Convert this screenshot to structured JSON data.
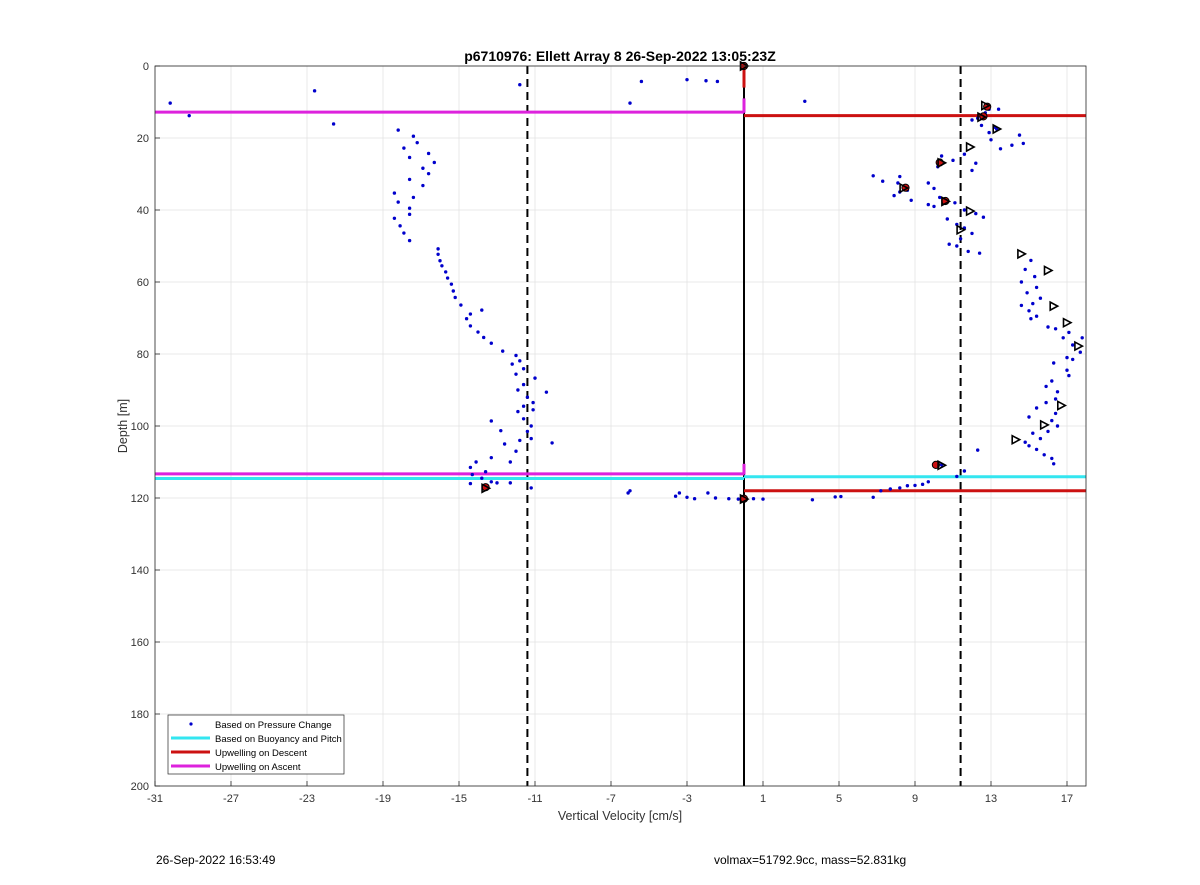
{
  "footer": {
    "timestamp": "26-Sep-2022 16:53:49",
    "info": "volmax=51792.9cc, mass=52.831kg"
  },
  "chart_data": {
    "type": "scatter",
    "title": "p6710976: Ellett Array 8 26-Sep-2022 13:05:23Z",
    "xlabel": "Vertical Velocity [cm/s]",
    "ylabel": "Depth [m]",
    "xlim": [
      -31,
      18
    ],
    "ylim": [
      0,
      200
    ],
    "y_reversed": true,
    "grid": true,
    "xticks": [
      -31,
      -27,
      -23,
      -19,
      -15,
      -11,
      -7,
      -3,
      1,
      5,
      9,
      13,
      17
    ],
    "yticks": [
      0,
      20,
      40,
      60,
      80,
      100,
      120,
      140,
      160,
      180,
      200
    ],
    "legend_position": "bottom-left",
    "colors": {
      "pressure": "#0000cc",
      "buoyancy": "#33e6f0",
      "descent": "#cc1111",
      "ascent": "#dd22dd",
      "marker_fill": "#cc1111",
      "reference": "#000000"
    },
    "legend": [
      {
        "label": "Based on Pressure Change",
        "style": "dot",
        "series": "pressure"
      },
      {
        "label": "Based on Buoyancy and Pitch",
        "style": "line",
        "series": "buoyancy"
      },
      {
        "label": "Upwelling on Descent",
        "style": "line",
        "series": "descent"
      },
      {
        "label": "Upwelling on Ascent",
        "style": "line",
        "series": "ascent"
      }
    ],
    "reference_lines": [
      {
        "x": 0,
        "style": "solid"
      },
      {
        "x": -11.4,
        "style": "dashed"
      },
      {
        "x": 11.4,
        "style": "dashed"
      }
    ],
    "horizontal_segments": [
      {
        "series": "ascent",
        "y": 12.8,
        "x_from": -31,
        "x_to": 0
      },
      {
        "series": "ascent",
        "y": 113.3,
        "x_from": -31,
        "x_to": 0
      },
      {
        "series": "buoyancy",
        "y": 114.6,
        "x_from": -31,
        "x_to": 0
      },
      {
        "series": "buoyancy",
        "y": 114.1,
        "x_from": 0,
        "x_to": 18
      },
      {
        "series": "descent",
        "y": 13.8,
        "x_from": 0,
        "x_to": 18
      },
      {
        "series": "descent",
        "y": 118.0,
        "x_from": 0,
        "x_to": 18
      }
    ],
    "vertical_segments": [
      {
        "series": "descent",
        "x": 0,
        "y_from": 0,
        "y_to": 6
      },
      {
        "series": "ascent",
        "x": 0,
        "y_from": 9,
        "y_to": 13
      },
      {
        "series": "ascent",
        "x": 0,
        "y_from": 110.5,
        "y_to": 113.5
      }
    ],
    "pressure_points": [
      [
        -30.2,
        10.3
      ],
      [
        -29.2,
        13.8
      ],
      [
        -22.6,
        6.9
      ],
      [
        -21.6,
        16.1
      ],
      [
        -11.8,
        5.2
      ],
      [
        -6.0,
        10.3
      ],
      [
        -5.4,
        4.3
      ],
      [
        -3.0,
        3.8
      ],
      [
        -2.0,
        4.1
      ],
      [
        -1.4,
        4.3
      ],
      [
        3.2,
        9.8
      ],
      [
        -18.2,
        17.8
      ],
      [
        -17.4,
        19.5
      ],
      [
        -17.2,
        21.3
      ],
      [
        -17.9,
        22.8
      ],
      [
        -16.6,
        24.3
      ],
      [
        -17.6,
        25.4
      ],
      [
        -16.3,
        26.8
      ],
      [
        -16.9,
        28.4
      ],
      [
        -16.6,
        29.9
      ],
      [
        -17.6,
        31.5
      ],
      [
        -16.9,
        33.2
      ],
      [
        -18.4,
        35.3
      ],
      [
        -17.4,
        36.5
      ],
      [
        -18.2,
        37.8
      ],
      [
        -17.6,
        39.5
      ],
      [
        -17.6,
        41.2
      ],
      [
        -18.4,
        42.3
      ],
      [
        -18.1,
        44.4
      ],
      [
        -17.9,
        46.4
      ],
      [
        -17.6,
        48.5
      ],
      [
        -16.1,
        50.8
      ],
      [
        -16.1,
        52.3
      ],
      [
        -16.0,
        54.1
      ],
      [
        -15.9,
        55.5
      ],
      [
        -15.7,
        57.2
      ],
      [
        -15.6,
        58.9
      ],
      [
        -15.4,
        60.6
      ],
      [
        -15.3,
        62.5
      ],
      [
        -15.2,
        64.3
      ],
      [
        -14.9,
        66.4
      ],
      [
        -13.8,
        67.8
      ],
      [
        -14.4,
        68.9
      ],
      [
        -14.6,
        70.2
      ],
      [
        -14.4,
        72.2
      ],
      [
        -14.0,
        73.9
      ],
      [
        -13.7,
        75.4
      ],
      [
        -13.3,
        77.0
      ],
      [
        -12.7,
        79.2
      ],
      [
        -12.0,
        80.4
      ],
      [
        -11.8,
        81.9
      ],
      [
        -12.2,
        82.8
      ],
      [
        -11.6,
        84.1
      ],
      [
        -12.0,
        85.6
      ],
      [
        -11.0,
        86.7
      ],
      [
        -11.6,
        88.5
      ],
      [
        -10.4,
        90.6
      ],
      [
        -11.9,
        90.0
      ],
      [
        -11.4,
        92.0
      ],
      [
        -11.1,
        93.5
      ],
      [
        -11.6,
        94.5
      ],
      [
        -11.1,
        95.5
      ],
      [
        -11.9,
        96.0
      ],
      [
        -11.6,
        98.0
      ],
      [
        -11.2,
        100.0
      ],
      [
        -11.4,
        101.5
      ],
      [
        -11.2,
        103.5
      ],
      [
        -11.8,
        104.0
      ],
      [
        -10.1,
        104.7
      ],
      [
        -13.3,
        98.6
      ],
      [
        -12.8,
        101.3
      ],
      [
        -12.6,
        105.0
      ],
      [
        -12.0,
        107.0
      ],
      [
        -13.3,
        108.8
      ],
      [
        -12.3,
        110.0
      ],
      [
        -14.1,
        110.0
      ],
      [
        -14.4,
        111.5
      ],
      [
        -13.6,
        112.7
      ],
      [
        -14.3,
        113.5
      ],
      [
        -13.8,
        114.5
      ],
      [
        -13.3,
        115.5
      ],
      [
        -14.4,
        116.0
      ],
      [
        -13.0,
        115.8
      ],
      [
        -12.3,
        115.8
      ],
      [
        -11.2,
        117.2
      ],
      [
        -6.0,
        118.0
      ],
      [
        -6.1,
        118.6
      ],
      [
        -3.4,
        118.6
      ],
      [
        -3.6,
        119.5
      ],
      [
        -3.0,
        119.8
      ],
      [
        -2.6,
        120.2
      ],
      [
        -1.9,
        118.6
      ],
      [
        -1.5,
        120.0
      ],
      [
        -0.8,
        120.2
      ],
      [
        -0.3,
        120.3
      ],
      [
        0.0,
        120.3
      ],
      [
        0.5,
        120.2
      ],
      [
        1.0,
        120.3
      ],
      [
        3.6,
        120.5
      ],
      [
        4.8,
        119.7
      ],
      [
        5.1,
        119.6
      ],
      [
        6.8,
        119.8
      ],
      [
        7.2,
        118.0
      ],
      [
        7.7,
        117.5
      ],
      [
        8.2,
        117.2
      ],
      [
        8.6,
        116.6
      ],
      [
        9.0,
        116.5
      ],
      [
        9.4,
        116.2
      ],
      [
        9.7,
        115.5
      ],
      [
        11.2,
        114.0
      ],
      [
        11.6,
        112.5
      ],
      [
        12.3,
        106.7
      ],
      [
        10.4,
        110.8
      ],
      [
        12.9,
        12.0
      ],
      [
        13.4,
        12.0
      ],
      [
        12.7,
        13.0
      ],
      [
        12.3,
        14.5
      ],
      [
        12.0,
        15.0
      ],
      [
        12.5,
        16.5
      ],
      [
        13.2,
        17.0
      ],
      [
        13.3,
        17.5
      ],
      [
        12.9,
        18.5
      ],
      [
        14.5,
        19.2
      ],
      [
        13.0,
        20.5
      ],
      [
        14.1,
        22.0
      ],
      [
        13.5,
        23.0
      ],
      [
        14.7,
        21.5
      ],
      [
        11.6,
        24.5
      ],
      [
        10.4,
        25.0
      ],
      [
        11.0,
        26.2
      ],
      [
        10.2,
        28.0
      ],
      [
        12.2,
        27.0
      ],
      [
        12.0,
        29.0
      ],
      [
        6.8,
        30.5
      ],
      [
        7.3,
        32.0
      ],
      [
        8.2,
        30.7
      ],
      [
        8.1,
        32.5
      ],
      [
        9.7,
        32.5
      ],
      [
        10.0,
        34.0
      ],
      [
        8.6,
        34.5
      ],
      [
        7.9,
        36.0
      ],
      [
        8.2,
        35.0
      ],
      [
        8.8,
        37.3
      ],
      [
        10.3,
        36.5
      ],
      [
        9.7,
        38.5
      ],
      [
        10.0,
        39.0
      ],
      [
        11.1,
        38.0
      ],
      [
        11.6,
        40.0
      ],
      [
        12.2,
        41.0
      ],
      [
        12.6,
        42.0
      ],
      [
        10.7,
        42.5
      ],
      [
        11.2,
        44.0
      ],
      [
        11.6,
        45.0
      ],
      [
        12.0,
        46.5
      ],
      [
        11.4,
        48.0
      ],
      [
        10.8,
        49.5
      ],
      [
        11.2,
        50.0
      ],
      [
        11.8,
        51.5
      ],
      [
        12.4,
        52.0
      ],
      [
        15.1,
        54.0
      ],
      [
        14.8,
        56.5
      ],
      [
        15.3,
        58.5
      ],
      [
        14.6,
        60.0
      ],
      [
        15.4,
        61.5
      ],
      [
        14.9,
        63.0
      ],
      [
        15.6,
        64.5
      ],
      [
        15.2,
        66.0
      ],
      [
        14.6,
        66.5
      ],
      [
        15.0,
        68.0
      ],
      [
        15.4,
        69.5
      ],
      [
        15.1,
        70.2
      ],
      [
        16.0,
        72.5
      ],
      [
        16.4,
        73.0
      ],
      [
        17.1,
        74.0
      ],
      [
        16.8,
        75.5
      ],
      [
        17.8,
        75.5
      ],
      [
        17.3,
        77.5
      ],
      [
        17.7,
        79.5
      ],
      [
        17.0,
        81.0
      ],
      [
        17.3,
        81.5
      ],
      [
        16.3,
        82.5
      ],
      [
        17.0,
        84.5
      ],
      [
        17.1,
        86.0
      ],
      [
        16.2,
        87.5
      ],
      [
        15.9,
        89.0
      ],
      [
        16.5,
        90.5
      ],
      [
        16.4,
        92.5
      ],
      [
        15.9,
        93.5
      ],
      [
        15.4,
        95.0
      ],
      [
        16.4,
        96.5
      ],
      [
        15.0,
        97.5
      ],
      [
        16.2,
        98.5
      ],
      [
        16.5,
        100.0
      ],
      [
        16.0,
        101.5
      ],
      [
        15.2,
        102.0
      ],
      [
        15.6,
        103.5
      ],
      [
        14.8,
        104.5
      ],
      [
        15.0,
        105.5
      ],
      [
        15.4,
        106.5
      ],
      [
        15.8,
        108.0
      ],
      [
        16.2,
        109.0
      ],
      [
        16.3,
        110.5
      ]
    ],
    "red_markers": [
      [
        0,
        0
      ],
      [
        12.8,
        11.3
      ],
      [
        12.6,
        14.0
      ],
      [
        10.3,
        26.8
      ],
      [
        8.5,
        33.8
      ],
      [
        10.6,
        37.5
      ],
      [
        10.1,
        110.8
      ],
      [
        -13.6,
        117.0
      ],
      [
        0,
        120.2
      ]
    ],
    "triangle_markers": [
      [
        12.7,
        11.0
      ],
      [
        12.5,
        14.2
      ],
      [
        13.3,
        17.5
      ],
      [
        11.9,
        22.5
      ],
      [
        10.4,
        26.9
      ],
      [
        8.4,
        33.9
      ],
      [
        11.9,
        40.3
      ],
      [
        11.4,
        45.5
      ],
      [
        14.6,
        52.2
      ],
      [
        16.0,
        56.8
      ],
      [
        16.3,
        66.7
      ],
      [
        17.0,
        71.3
      ],
      [
        17.6,
        77.8
      ],
      [
        16.7,
        94.3
      ],
      [
        15.8,
        99.7
      ],
      [
        14.3,
        103.8
      ],
      [
        10.6,
        37.6
      ],
      [
        10.4,
        110.9
      ],
      [
        -13.6,
        117.3
      ],
      [
        0,
        0
      ],
      [
        0,
        120.3
      ]
    ]
  }
}
